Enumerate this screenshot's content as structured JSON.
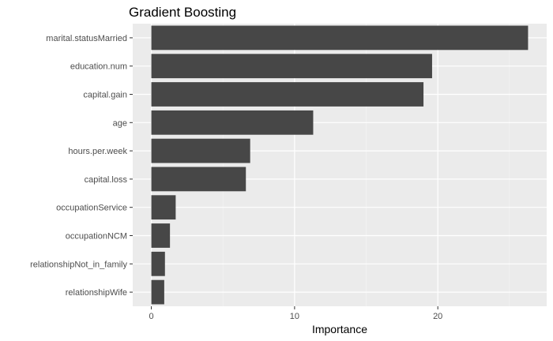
{
  "chart_data": {
    "type": "bar",
    "orientation": "horizontal",
    "title": "Gradient Boosting",
    "xlabel": "Importance",
    "ylabel": "",
    "categories": [
      "marital.statusMarried",
      "education.num",
      "capital.gain",
      "age",
      "hours.per.week",
      "capital.loss",
      "occupationService",
      "occupationNCM",
      "relationshipNot_in_family",
      "relationshipWife"
    ],
    "values": [
      26.3,
      19.6,
      19.0,
      11.3,
      6.9,
      6.6,
      1.7,
      1.3,
      0.95,
      0.9
    ],
    "xlim": [
      -1.3,
      27.6
    ],
    "xticks": [
      0,
      10,
      20
    ],
    "grid": true,
    "colors": {
      "bar": "#474747",
      "panel": "#ebebeb",
      "grid_major": "#ffffff",
      "grid_minor": "#f5f5f5"
    }
  }
}
